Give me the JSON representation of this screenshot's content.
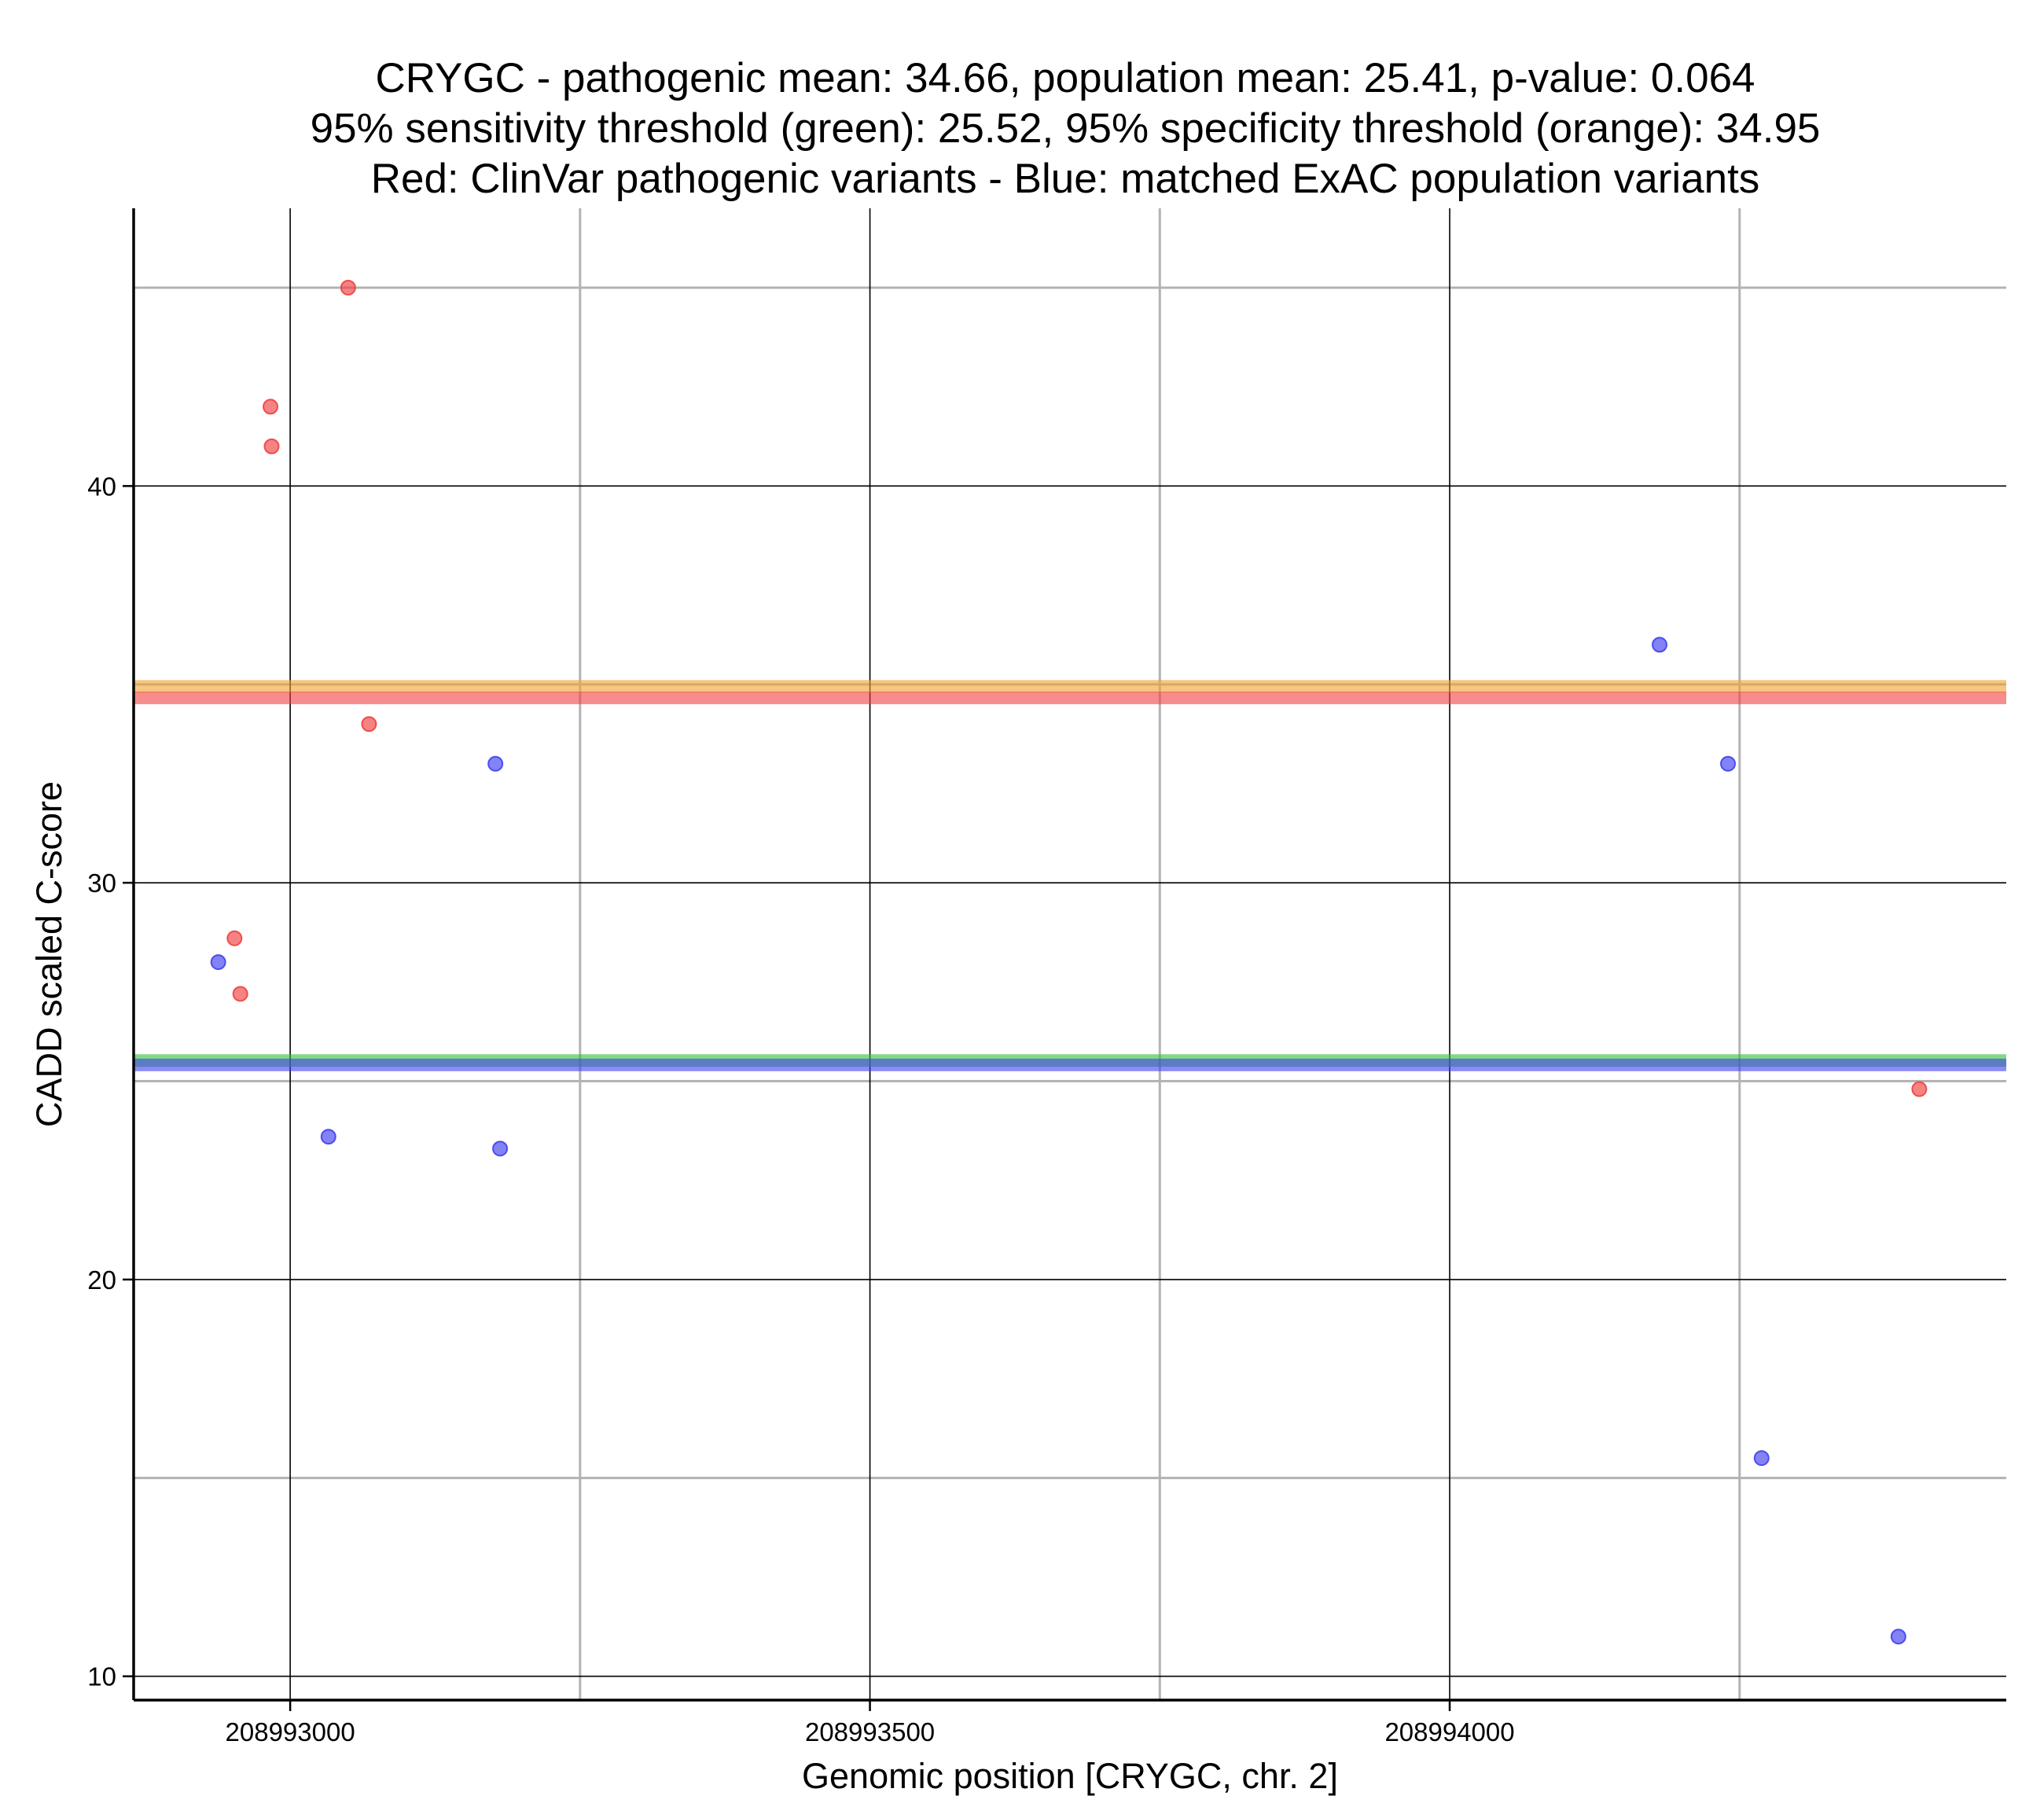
{
  "chart_data": {
    "type": "scatter",
    "title": [
      "CRYGC - pathogenic mean: 34.66, population mean: 25.41, p-value: 0.064",
      "95% sensitivity threshold (green): 25.52, 95% specificity threshold (orange): 34.95",
      "Red: ClinVar pathogenic variants - Blue: matched ExAC population variants"
    ],
    "xlabel": "Genomic position [CRYGC, chr. 2]",
    "ylabel": "CADD scaled C-score",
    "xlim": [
      208992865,
      208994480
    ],
    "ylim": [
      9.4,
      47.0
    ],
    "x_ticks": [
      208993000,
      208993500,
      208994000
    ],
    "x_minor_ticks": [
      208993250,
      208993750,
      208994250
    ],
    "y_ticks": [
      10,
      20,
      30,
      40
    ],
    "y_minor_ticks": [
      15,
      25,
      35,
      45
    ],
    "grid": true,
    "series": [
      {
        "color": "#f04040",
        "points": [
          {
            "x": 208993050,
            "y": 45.0
          },
          {
            "x": 208992983,
            "y": 42.0
          },
          {
            "x": 208992984,
            "y": 41.0
          },
          {
            "x": 208993068,
            "y": 34.0
          },
          {
            "x": 208992952,
            "y": 28.6
          },
          {
            "x": 208992957,
            "y": 27.2
          },
          {
            "x": 208994405,
            "y": 24.8
          }
        ]
      },
      {
        "color": "#4040f0",
        "points": [
          {
            "x": 208993177,
            "y": 33.0
          },
          {
            "x": 208992938,
            "y": 28.0
          },
          {
            "x": 208993033,
            "y": 23.6
          },
          {
            "x": 208993181,
            "y": 23.3
          },
          {
            "x": 208994181,
            "y": 36.0
          },
          {
            "x": 208994240,
            "y": 33.0
          },
          {
            "x": 208994269,
            "y": 15.5
          },
          {
            "x": 208994387,
            "y": 11.0
          }
        ]
      }
    ],
    "reference_lines": [
      {
        "y": 34.95,
        "color": "#f0a030"
      },
      {
        "y": 34.66,
        "color": "#f04040"
      },
      {
        "y": 25.52,
        "color": "#30c030"
      },
      {
        "y": 25.41,
        "color": "#4040f0"
      }
    ]
  }
}
